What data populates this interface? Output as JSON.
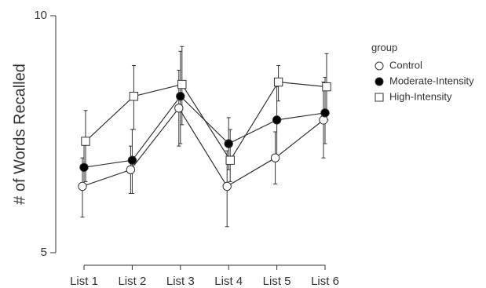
{
  "chart_data": {
    "type": "line",
    "title": "",
    "xlabel": "",
    "ylabel": "# of Words Recalled",
    "categories": [
      "List 1",
      "List 2",
      "List 3",
      "List 4",
      "List 5",
      "List 6"
    ],
    "ylim": [
      5,
      10
    ],
    "yticks": [
      5,
      10
    ],
    "grid": false,
    "legend": {
      "title": "group",
      "position": "right"
    },
    "series": [
      {
        "name": "Control",
        "marker": "open-circle",
        "values": [
          6.4,
          6.75,
          8.05,
          6.4,
          7.0,
          7.8
        ],
        "error_low": [
          5.75,
          6.25,
          7.25,
          5.55,
          6.45,
          7.0
        ],
        "error_high": [
          7.0,
          7.25,
          8.85,
          7.15,
          7.55,
          8.6
        ]
      },
      {
        "name": "Moderate-Intensity",
        "marker": "filled-circle",
        "values": [
          6.8,
          6.95,
          8.3,
          7.3,
          7.8,
          7.95
        ],
        "error_low": [
          6.4,
          6.25,
          7.3,
          6.75,
          7.05,
          7.3
        ],
        "error_high": [
          7.35,
          7.6,
          9.25,
          7.85,
          8.5,
          8.7
        ]
      },
      {
        "name": "High-Intensity",
        "marker": "open-square",
        "values": [
          7.35,
          8.3,
          8.55,
          6.95,
          8.6,
          8.5
        ],
        "error_low": [
          6.5,
          7.6,
          7.7,
          6.5,
          8.2,
          7.8
        ],
        "error_high": [
          8.0,
          8.95,
          9.35,
          7.6,
          8.95,
          9.2
        ]
      }
    ]
  }
}
